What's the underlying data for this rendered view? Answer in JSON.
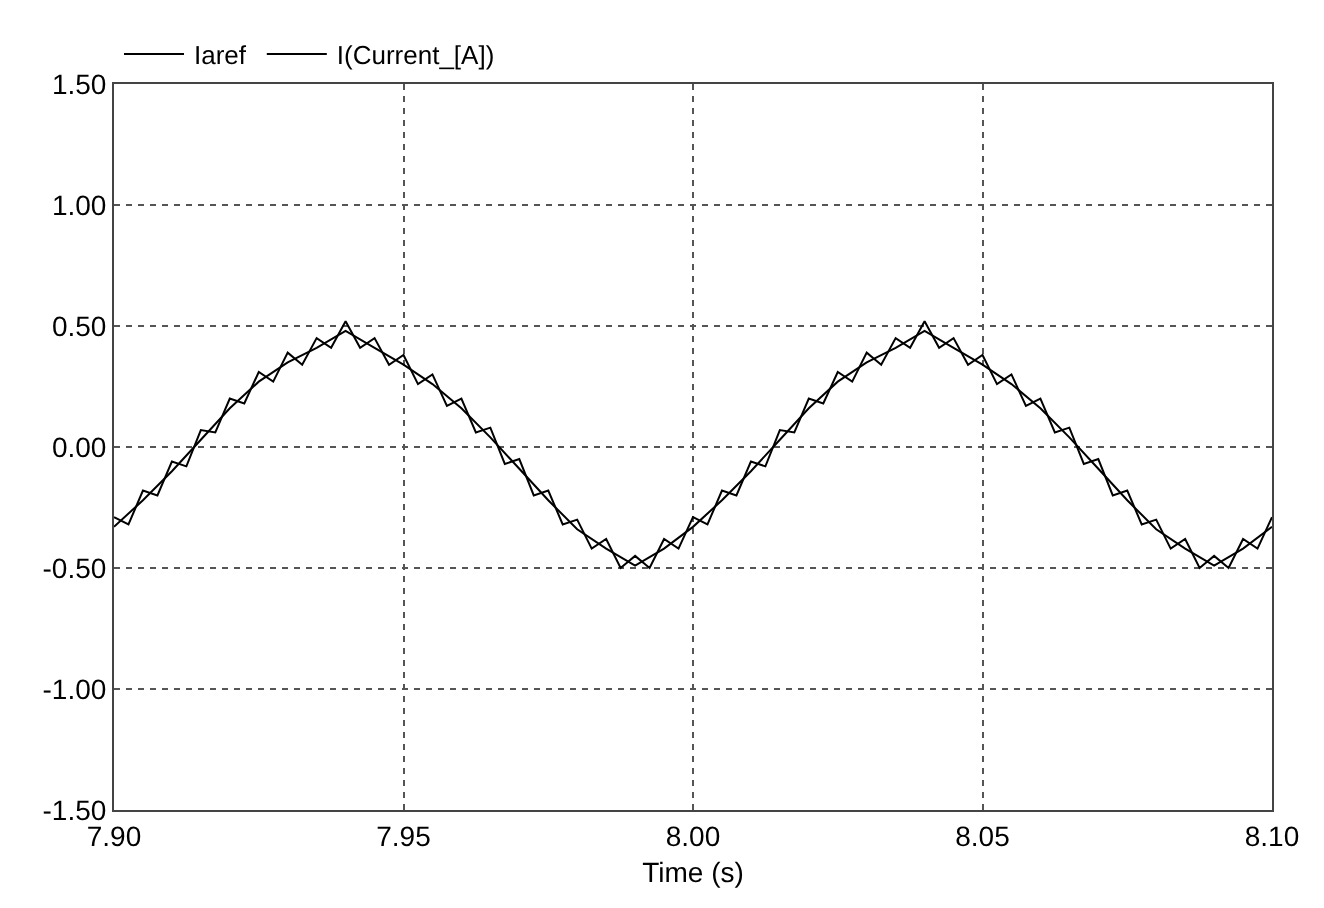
{
  "chart_data": {
    "type": "line",
    "xlabel": "Time (s)",
    "xlim": [
      7.9,
      8.1
    ],
    "xticks": [
      {
        "value": 7.9,
        "label": "7.90"
      },
      {
        "value": 7.95,
        "label": "7.95"
      },
      {
        "value": 8.0,
        "label": "8.00"
      },
      {
        "value": 8.05,
        "label": "8.05"
      },
      {
        "value": 8.1,
        "label": "8.10"
      }
    ],
    "ylim": [
      -1.5,
      1.5
    ],
    "yticks": [
      {
        "value": -1.5,
        "label": "-1.50"
      },
      {
        "value": -1.0,
        "label": "-1.00"
      },
      {
        "value": -0.5,
        "label": "-0.50"
      },
      {
        "value": 0,
        "label": "0.00"
      },
      {
        "value": 0.5,
        "label": "0.50"
      },
      {
        "value": 1.0,
        "label": "1.00"
      },
      {
        "value": 1.5,
        "label": "1.50"
      }
    ],
    "grid": true,
    "legend": "top left",
    "line_style": "solid",
    "marker": "none",
    "series": [
      {
        "name": "Iaref",
        "color": "#000000",
        "x": [
          7.9,
          7.905,
          7.91,
          7.915,
          7.92,
          7.925,
          7.93,
          7.935,
          7.94,
          7.945,
          7.95,
          7.955,
          7.96,
          7.965,
          7.97,
          7.975,
          7.98,
          7.985,
          7.99,
          7.995,
          8.0,
          8.005,
          8.01,
          8.015,
          8.02,
          8.025,
          8.03,
          8.035,
          8.04,
          8.045,
          8.05,
          8.055,
          8.06,
          8.065,
          8.07,
          8.075,
          8.08,
          8.085,
          8.09,
          8.095,
          8.1
        ],
        "values": [
          -0.33,
          -0.22,
          -0.1,
          0.03,
          0.16,
          0.27,
          0.35,
          0.41,
          0.48,
          0.41,
          0.34,
          0.26,
          0.16,
          0.04,
          -0.09,
          -0.22,
          -0.34,
          -0.42,
          -0.49,
          -0.42,
          -0.33,
          -0.22,
          -0.1,
          0.03,
          0.16,
          0.27,
          0.35,
          0.41,
          0.48,
          0.41,
          0.34,
          0.26,
          0.16,
          0.04,
          -0.09,
          -0.22,
          -0.34,
          -0.42,
          -0.49,
          -0.42,
          -0.33
        ]
      },
      {
        "name": "I(Current_[A])",
        "color": "#000000",
        "x": [
          7.9,
          7.9025,
          7.905,
          7.9075,
          7.91,
          7.9125,
          7.915,
          7.9175,
          7.92,
          7.9225,
          7.925,
          7.9275,
          7.93,
          7.9325,
          7.935,
          7.9375,
          7.94,
          7.9425,
          7.945,
          7.9475,
          7.95,
          7.9525,
          7.955,
          7.9575,
          7.96,
          7.9625,
          7.965,
          7.9675,
          7.97,
          7.9725,
          7.975,
          7.9775,
          7.98,
          7.9825,
          7.985,
          7.9875,
          7.99,
          7.9925,
          7.995,
          7.9975,
          8.0,
          8.0025,
          8.005,
          8.0075,
          8.01,
          8.0125,
          8.015,
          8.0175,
          8.02,
          8.0225,
          8.025,
          8.0275,
          8.03,
          8.0325,
          8.035,
          8.0375,
          8.04,
          8.0425,
          8.045,
          8.0475,
          8.05,
          8.0525,
          8.055,
          8.0575,
          8.06,
          8.0625,
          8.065,
          8.0675,
          8.07,
          8.0725,
          8.075,
          8.0775,
          8.08,
          8.0825,
          8.085,
          8.0875,
          8.09,
          8.0925,
          8.095,
          8.0975,
          8.1
        ],
        "values": [
          -0.29,
          -0.32,
          -0.18,
          -0.2,
          -0.06,
          -0.08,
          0.07,
          0.06,
          0.2,
          0.18,
          0.31,
          0.27,
          0.39,
          0.34,
          0.45,
          0.41,
          0.52,
          0.41,
          0.45,
          0.34,
          0.38,
          0.26,
          0.3,
          0.17,
          0.2,
          0.06,
          0.08,
          -0.07,
          -0.05,
          -0.2,
          -0.18,
          -0.32,
          -0.3,
          -0.42,
          -0.38,
          -0.5,
          -0.45,
          -0.5,
          -0.38,
          -0.42,
          -0.29,
          -0.32,
          -0.18,
          -0.2,
          -0.06,
          -0.08,
          0.07,
          0.06,
          0.2,
          0.18,
          0.31,
          0.27,
          0.39,
          0.34,
          0.45,
          0.41,
          0.52,
          0.41,
          0.45,
          0.34,
          0.38,
          0.26,
          0.3,
          0.17,
          0.2,
          0.06,
          0.08,
          -0.07,
          -0.05,
          -0.2,
          -0.18,
          -0.32,
          -0.3,
          -0.42,
          -0.38,
          -0.5,
          -0.45,
          -0.5,
          -0.38,
          -0.42,
          -0.29
        ]
      }
    ]
  }
}
